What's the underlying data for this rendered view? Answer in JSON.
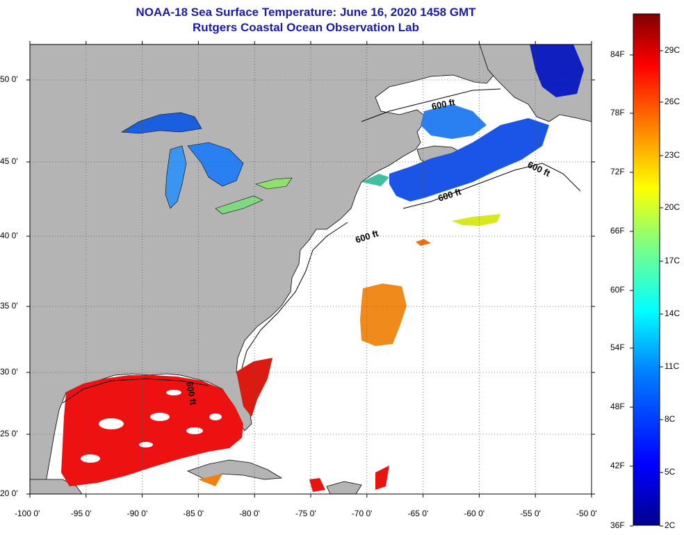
{
  "title": "NOAA-18 Sea Surface Temperature:  June 16, 2020 1458 GMT",
  "subtitle": "Rutgers Coastal Ocean Observation Lab",
  "x_ticks": [
    "-100 0'",
    "-95 0'",
    "-90 0'",
    "-85 0'",
    "-80 0'",
    "-75 0'",
    "-70 0'",
    "-65 0'",
    "-60 0'",
    "-55 0'",
    "-50 0'"
  ],
  "y_ticks": [
    "50 0'",
    "45 0'",
    "40 0'",
    "35 0'",
    "30 0'",
    "25 0'",
    "20 0'"
  ],
  "contour_label": "600 ft",
  "colorbar": {
    "f_labels": [
      "84F",
      "78F",
      "72F",
      "66F",
      "60F",
      "54F",
      "48F",
      "42F",
      "36F"
    ],
    "c_labels": [
      "29C",
      "26C",
      "23C",
      "20C",
      "17C",
      "14C",
      "11C",
      "8C",
      "5C",
      "2C"
    ]
  },
  "colors": {
    "land": "#b4b4b4",
    "ocean_no_data": "#ffffff",
    "title": "#1a1aa8"
  }
}
